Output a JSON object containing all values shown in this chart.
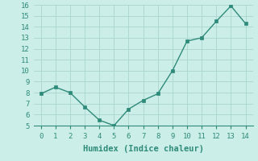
{
  "x": [
    0,
    1,
    2,
    3,
    4,
    5,
    6,
    7,
    8,
    9,
    10,
    11,
    12,
    13,
    14
  ],
  "y": [
    7.9,
    8.5,
    8.0,
    6.7,
    5.5,
    5.0,
    6.5,
    7.3,
    7.9,
    10.0,
    12.7,
    13.0,
    14.5,
    15.9,
    14.3
  ],
  "xlabel": "Humidex (Indice chaleur)",
  "ylim": [
    5,
    16
  ],
  "xlim": [
    -0.5,
    14.5
  ],
  "yticks": [
    5,
    6,
    7,
    8,
    9,
    10,
    11,
    12,
    13,
    14,
    15,
    16
  ],
  "xticks": [
    0,
    1,
    2,
    3,
    4,
    5,
    6,
    7,
    8,
    9,
    10,
    11,
    12,
    13,
    14
  ],
  "line_color": "#2e8b7a",
  "marker_color": "#2e8b7a",
  "bg_color": "#cceee8",
  "grid_color": "#aad4ce",
  "tick_color": "#2e8b7a",
  "font_family": "monospace",
  "xlabel_fontsize": 7.5,
  "tick_fontsize": 6.5
}
